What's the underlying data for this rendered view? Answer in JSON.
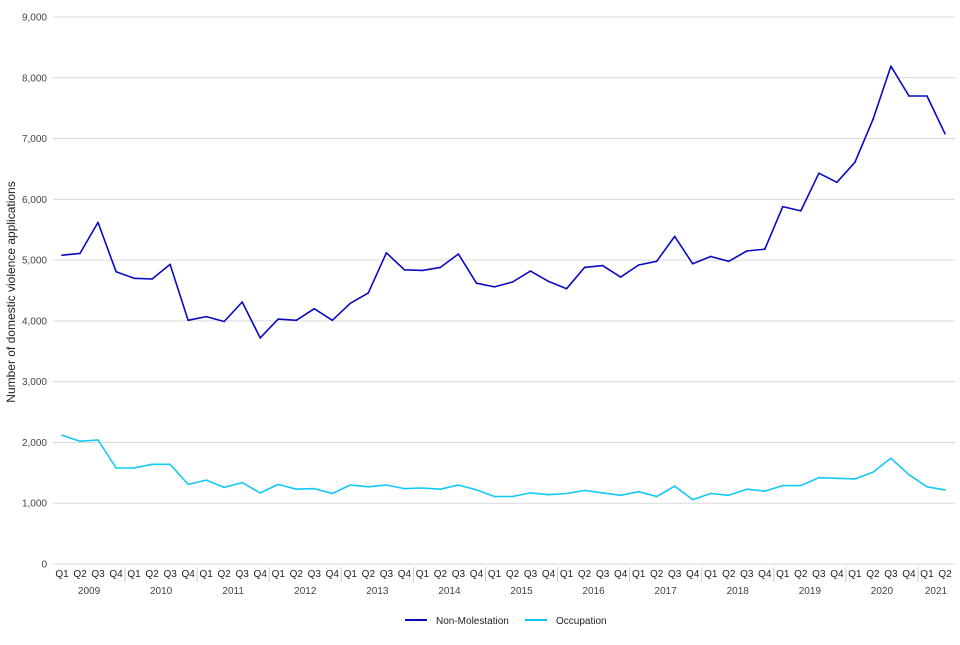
{
  "chart_data": {
    "type": "line",
    "title": "",
    "xlabel": "",
    "ylabel": "Number of domestic violence applications",
    "ylim": [
      0,
      9000
    ],
    "yticks": [
      0,
      1000,
      2000,
      3000,
      4000,
      5000,
      6000,
      7000,
      8000,
      9000
    ],
    "ytick_labels": [
      "0",
      "1,000",
      "2,000",
      "3,000",
      "4,000",
      "5,000",
      "6,000",
      "7,000",
      "8,000",
      "9,000"
    ],
    "grid": true,
    "legend_position": "bottom-center",
    "quarter_labels": [
      "Q1",
      "Q2",
      "Q3",
      "Q4"
    ],
    "years": [
      "2009",
      "2010",
      "2011",
      "2012",
      "2013",
      "2014",
      "2015",
      "2016",
      "2017",
      "2018",
      "2019",
      "2020",
      "2021"
    ],
    "periods": [
      "2009 Q1",
      "2009 Q2",
      "2009 Q3",
      "2009 Q4",
      "2010 Q1",
      "2010 Q2",
      "2010 Q3",
      "2010 Q4",
      "2011 Q1",
      "2011 Q2",
      "2011 Q3",
      "2011 Q4",
      "2012 Q1",
      "2012 Q2",
      "2012 Q3",
      "2012 Q4",
      "2013 Q1",
      "2013 Q2",
      "2013 Q3",
      "2013 Q4",
      "2014 Q1",
      "2014 Q2",
      "2014 Q3",
      "2014 Q4",
      "2015 Q1",
      "2015 Q2",
      "2015 Q3",
      "2015 Q4",
      "2016 Q1",
      "2016 Q2",
      "2016 Q3",
      "2016 Q4",
      "2017 Q1",
      "2017 Q2",
      "2017 Q3",
      "2017 Q4",
      "2018 Q1",
      "2018 Q2",
      "2018 Q3",
      "2018 Q4",
      "2019 Q1",
      "2019 Q2",
      "2019 Q3",
      "2019 Q4",
      "2020 Q1",
      "2020 Q2",
      "2020 Q3",
      "2020 Q4",
      "2021 Q1",
      "2021 Q2"
    ],
    "series": [
      {
        "name": "Non-Molestation",
        "color": "#0a0ac2",
        "values": [
          5080,
          5110,
          5620,
          4810,
          4700,
          4690,
          4930,
          4010,
          4070,
          3990,
          4310,
          3720,
          4030,
          4010,
          4200,
          4010,
          4290,
          4460,
          5120,
          4840,
          4830,
          4880,
          5100,
          4620,
          4560,
          4640,
          4820,
          4650,
          4530,
          4880,
          4910,
          4720,
          4920,
          4980,
          5390,
          4940,
          5060,
          4980,
          5150,
          5180,
          5880,
          5810,
          6430,
          6280,
          6610,
          7310,
          8190,
          7700,
          7700,
          7080
        ]
      },
      {
        "name": "Occupation",
        "color": "#12c8f5",
        "values": [
          2120,
          2020,
          2040,
          1580,
          1580,
          1640,
          1640,
          1310,
          1380,
          1260,
          1340,
          1170,
          1310,
          1230,
          1240,
          1160,
          1300,
          1270,
          1300,
          1240,
          1250,
          1230,
          1300,
          1220,
          1110,
          1110,
          1170,
          1140,
          1160,
          1210,
          1170,
          1130,
          1190,
          1110,
          1280,
          1060,
          1160,
          1130,
          1230,
          1200,
          1290,
          1290,
          1420,
          1410,
          1400,
          1510,
          1740,
          1470,
          1270,
          1220
        ]
      }
    ]
  }
}
